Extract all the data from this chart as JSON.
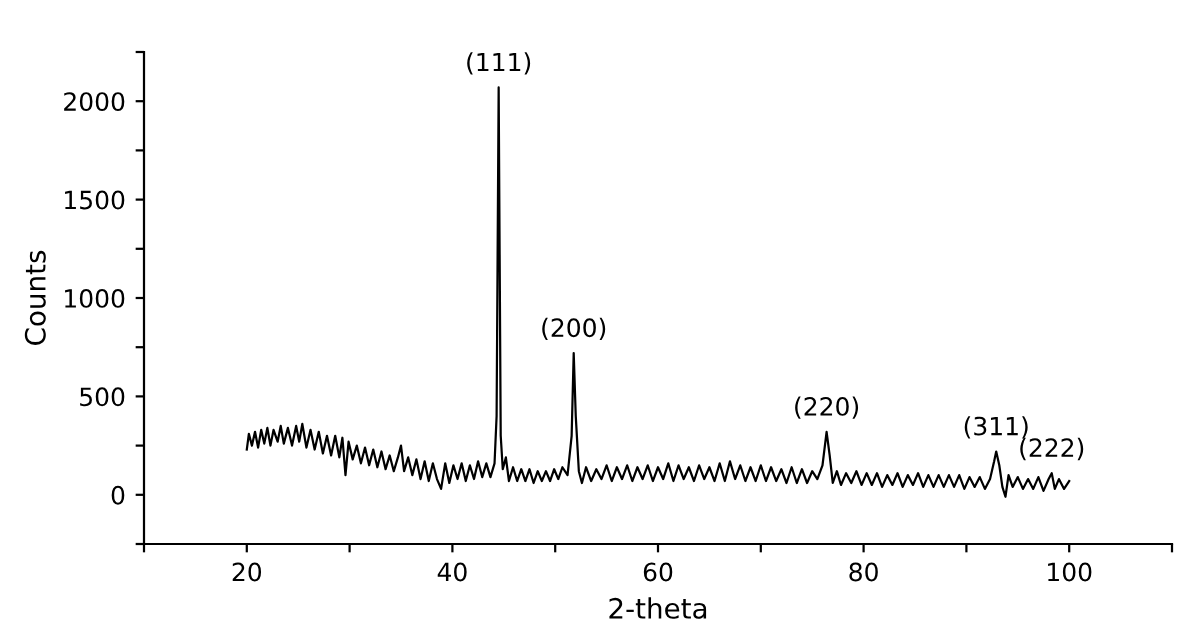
{
  "chart_data": {
    "type": "line",
    "xlabel": "2-theta",
    "ylabel": "Counts",
    "xlim": [
      10,
      110
    ],
    "xticks": [
      20,
      40,
      60,
      80,
      100,
      {
        "value": 10,
        "label": null
      },
      {
        "value": 30,
        "label": null
      },
      {
        "value": 50,
        "label": null
      },
      {
        "value": 70,
        "label": null
      },
      {
        "value": 90,
        "label": null
      },
      {
        "value": 110,
        "label": null
      }
    ],
    "ylim": [
      -250,
      2250
    ],
    "yticks": [
      0,
      500,
      1000,
      1500,
      2000,
      {
        "value": -250,
        "label": null
      },
      {
        "value": 250,
        "label": null
      },
      {
        "value": 750,
        "label": null
      },
      {
        "value": 1250,
        "label": null
      },
      {
        "value": 1750,
        "label": null
      },
      {
        "value": 2250,
        "label": null
      }
    ],
    "grid": false,
    "legend": false,
    "marker": "none",
    "line_style": "solid",
    "annotations": [
      {
        "text": "(111)",
        "x": 44.5,
        "y": 2070
      },
      {
        "text": "(200)",
        "x": 51.8,
        "y": 720
      },
      {
        "text": "(220)",
        "x": 76.4,
        "y": 320
      },
      {
        "text": "(311)",
        "x": 92.9,
        "y": 220
      },
      {
        "text": "(222)",
        "x": 98.3,
        "y": 110
      }
    ],
    "series": [
      {
        "color": "#000000",
        "x": [
          20.0,
          20.2,
          20.5,
          20.8,
          21.1,
          21.4,
          21.7,
          22.0,
          22.3,
          22.6,
          23.0,
          23.3,
          23.6,
          24.0,
          24.4,
          24.8,
          25.1,
          25.4,
          25.8,
          26.2,
          26.6,
          27.0,
          27.4,
          27.8,
          28.2,
          28.6,
          29.0,
          29.3,
          29.6,
          29.9,
          30.3,
          30.7,
          31.1,
          31.5,
          31.9,
          32.3,
          32.7,
          33.1,
          33.5,
          33.9,
          34.3,
          34.7,
          35.0,
          35.3,
          35.7,
          36.1,
          36.5,
          36.9,
          37.3,
          37.7,
          38.1,
          38.5,
          38.9,
          39.3,
          39.7,
          40.1,
          40.5,
          40.9,
          41.3,
          41.7,
          42.1,
          42.5,
          42.9,
          43.3,
          43.7,
          44.1,
          44.3,
          44.5,
          44.7,
          44.9,
          45.2,
          45.5,
          45.9,
          46.3,
          46.7,
          47.1,
          47.5,
          47.9,
          48.3,
          48.7,
          49.1,
          49.5,
          49.9,
          50.3,
          50.7,
          51.2,
          51.6,
          51.8,
          52.0,
          52.3,
          52.6,
          53.0,
          53.5,
          54.0,
          54.5,
          55.0,
          55.5,
          56.0,
          56.5,
          57.0,
          57.5,
          58.0,
          58.5,
          59.0,
          59.5,
          60.0,
          60.5,
          61.0,
          61.5,
          62.0,
          62.5,
          63.0,
          63.5,
          64.0,
          64.5,
          65.0,
          65.5,
          66.0,
          66.5,
          67.0,
          67.5,
          68.0,
          68.5,
          69.0,
          69.5,
          70.0,
          70.5,
          71.0,
          71.5,
          72.0,
          72.5,
          73.0,
          73.5,
          74.0,
          74.5,
          75.0,
          75.5,
          76.0,
          76.4,
          76.7,
          77.0,
          77.4,
          77.8,
          78.3,
          78.8,
          79.3,
          79.8,
          80.3,
          80.8,
          81.3,
          81.8,
          82.3,
          82.8,
          83.3,
          83.8,
          84.3,
          84.8,
          85.3,
          85.8,
          86.3,
          86.8,
          87.3,
          87.8,
          88.3,
          88.8,
          89.3,
          89.8,
          90.3,
          90.8,
          91.3,
          91.8,
          92.3,
          92.7,
          92.9,
          93.2,
          93.5,
          93.8,
          94.1,
          94.5,
          95.0,
          95.5,
          96.0,
          96.5,
          97.0,
          97.5,
          98.0,
          98.3,
          98.6,
          99.0,
          99.5,
          100.0
        ],
        "values": [
          230,
          310,
          250,
          320,
          240,
          330,
          260,
          340,
          250,
          330,
          270,
          350,
          260,
          340,
          250,
          350,
          270,
          360,
          240,
          330,
          230,
          320,
          210,
          300,
          200,
          300,
          190,
          290,
          100,
          270,
          180,
          250,
          160,
          240,
          150,
          230,
          140,
          220,
          130,
          200,
          120,
          190,
          250,
          120,
          190,
          100,
          180,
          80,
          170,
          70,
          160,
          80,
          30,
          160,
          60,
          150,
          80,
          160,
          70,
          150,
          80,
          170,
          90,
          160,
          90,
          160,
          400,
          2070,
          300,
          130,
          190,
          70,
          140,
          70,
          130,
          70,
          130,
          60,
          120,
          70,
          120,
          70,
          130,
          80,
          140,
          100,
          300,
          720,
          400,
          120,
          60,
          140,
          70,
          130,
          80,
          150,
          70,
          140,
          80,
          150,
          70,
          140,
          80,
          150,
          70,
          140,
          80,
          160,
          70,
          150,
          80,
          140,
          70,
          150,
          80,
          140,
          70,
          160,
          70,
          170,
          80,
          150,
          70,
          140,
          70,
          150,
          70,
          140,
          70,
          130,
          60,
          140,
          60,
          130,
          60,
          120,
          80,
          150,
          320,
          200,
          60,
          120,
          50,
          110,
          60,
          120,
          50,
          110,
          50,
          110,
          40,
          100,
          50,
          110,
          40,
          100,
          50,
          110,
          40,
          100,
          40,
          100,
          40,
          100,
          40,
          100,
          30,
          90,
          40,
          90,
          30,
          80,
          170,
          220,
          150,
          40,
          -10,
          100,
          40,
          90,
          30,
          80,
          30,
          90,
          20,
          80,
          110,
          30,
          80,
          30,
          70
        ]
      }
    ]
  }
}
